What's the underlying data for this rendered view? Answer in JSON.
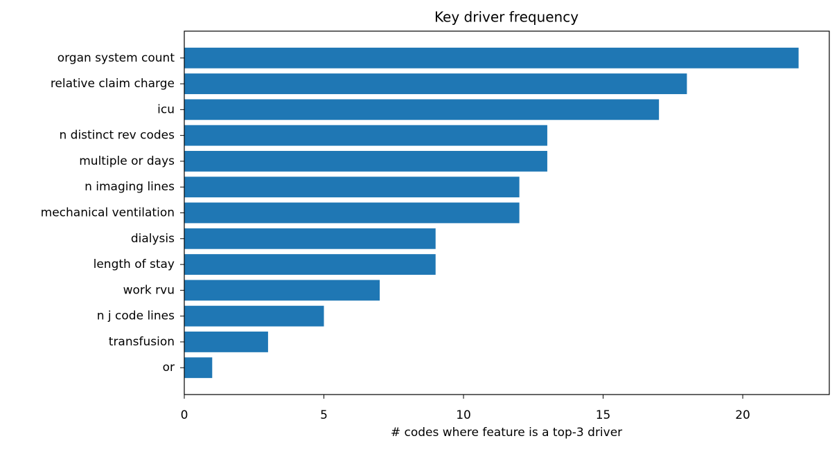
{
  "chart_data": {
    "type": "barh",
    "title": "Key driver frequency",
    "xlabel": "# codes where feature is a top-3 driver",
    "categories": [
      "organ system count",
      "relative claim charge",
      "icu",
      "n distinct rev codes",
      "multiple or days",
      "n imaging lines",
      "mechanical ventilation",
      "dialysis",
      "length of stay",
      "work rvu",
      "n j code lines",
      "transfusion",
      "or"
    ],
    "values": [
      22,
      18,
      17,
      13,
      13,
      12,
      12,
      9,
      9,
      7,
      5,
      3,
      1
    ],
    "color": "#1f77b4",
    "xlim": [
      0,
      23.1
    ],
    "xticks": [
      0,
      5,
      10,
      15,
      20
    ]
  }
}
